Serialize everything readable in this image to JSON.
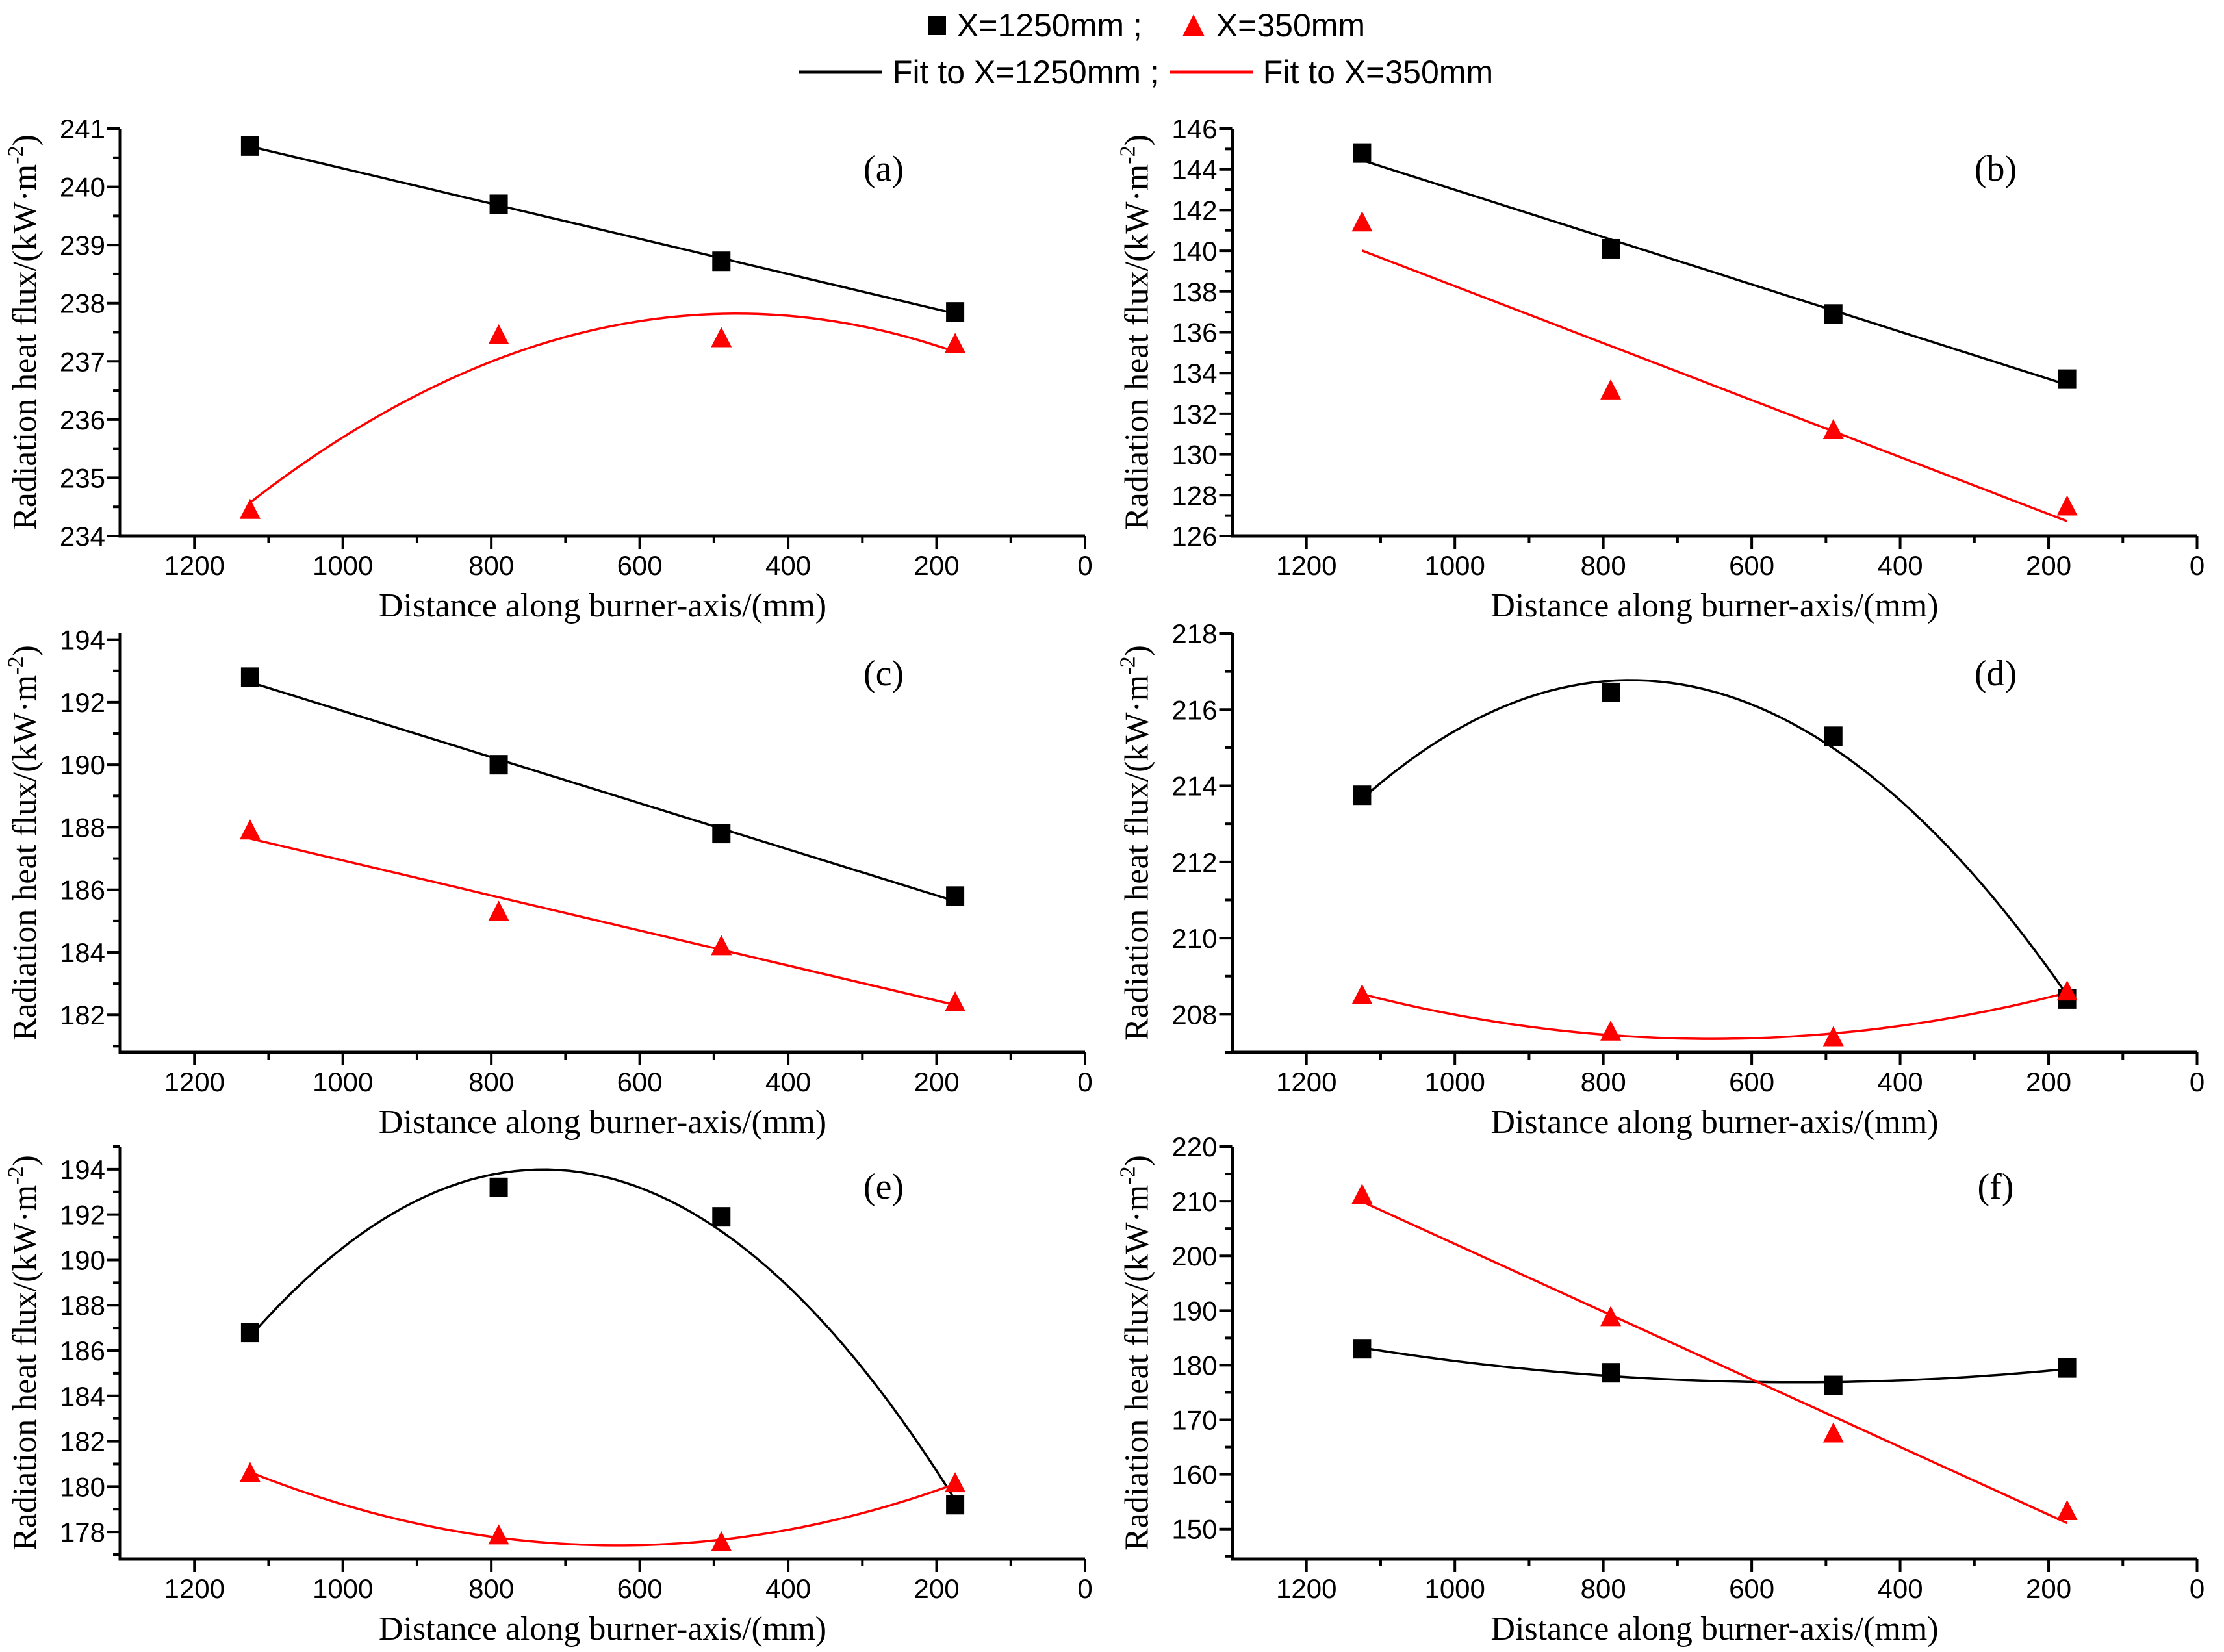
{
  "figure": {
    "background": "#FFFFFF",
    "colors": {
      "series1": "#000000",
      "series2": "#FF0000"
    }
  },
  "legend": {
    "row1": [
      {
        "marker": "square",
        "color": "#000000",
        "label": "X=1250mm ;"
      },
      {
        "marker": "triangle",
        "color": "#FF0000",
        "label": "X=350mm"
      }
    ],
    "row2": [
      {
        "marker": "line",
        "color": "#000000",
        "label": "Fit to X=1250mm ;"
      },
      {
        "marker": "line",
        "color": "#FF0000",
        "label": "Fit to X=350mm"
      }
    ]
  },
  "axis_text": {
    "xlabel": "Distance along burner-axis/(mm)",
    "ylabel": "Radiation heat flux/(kW·m⁻²)",
    "ylabel_parts": {
      "base": "Radiation heat flux/(kW·m",
      "sup": "-2",
      "end": ")"
    }
  },
  "chart_data": [
    {
      "panel": "(a)",
      "type": "scatter",
      "xlabel": "Distance along burner-axis/(mm)",
      "ylabel": "Radiation heat flux/(kW·m⁻²)",
      "xlim": [
        1300,
        0
      ],
      "x_reversed": true,
      "xticks": [
        1200,
        1000,
        800,
        600,
        400,
        200,
        0
      ],
      "xminors": [
        1100,
        900,
        700,
        500,
        300,
        100
      ],
      "ylim": [
        234,
        241
      ],
      "yticks": [
        234,
        235,
        236,
        237,
        238,
        239,
        240,
        241
      ],
      "yminors": [
        234.5,
        235.5,
        236.5,
        237.5,
        238.5,
        239.5,
        240.5
      ],
      "x": [
        1125,
        790,
        490,
        175
      ],
      "series": [
        {
          "name": "X=1250mm",
          "marker": "square",
          "color": "#000000",
          "values": [
            240.7,
            239.7,
            238.72,
            237.85
          ],
          "fit": "linear"
        },
        {
          "name": "X=350mm",
          "marker": "triangle",
          "color": "#FF0000",
          "values": [
            234.45,
            237.45,
            237.4,
            237.3
          ],
          "fit": "quadratic"
        }
      ]
    },
    {
      "panel": "(b)",
      "type": "scatter",
      "xlabel": "Distance along burner-axis/(mm)",
      "ylabel": "Radiation heat flux/(kW·m⁻²)",
      "xlim": [
        1300,
        0
      ],
      "x_reversed": true,
      "xticks": [
        1200,
        1000,
        800,
        600,
        400,
        200,
        0
      ],
      "xminors": [
        1100,
        900,
        700,
        500,
        300,
        100
      ],
      "ylim": [
        126,
        146
      ],
      "yticks": [
        126,
        128,
        130,
        132,
        134,
        136,
        138,
        140,
        142,
        144,
        146
      ],
      "yminors": [
        127,
        129,
        131,
        133,
        135,
        137,
        139,
        141,
        143,
        145
      ],
      "x": [
        1125,
        790,
        490,
        175
      ],
      "series": [
        {
          "name": "X=1250mm",
          "marker": "square",
          "color": "#000000",
          "values": [
            144.8,
            140.1,
            136.9,
            133.7
          ],
          "fit": "linear"
        },
        {
          "name": "X=350mm",
          "marker": "triangle",
          "color": "#FF0000",
          "values": [
            141.4,
            133.15,
            131.2,
            127.45
          ],
          "fit": "linear"
        }
      ]
    },
    {
      "panel": "(c)",
      "type": "scatter",
      "xlabel": "Distance along burner-axis/(mm)",
      "ylabel": "Radiation heat flux/(kW·m⁻²)",
      "xlim": [
        1300,
        0
      ],
      "x_reversed": true,
      "xticks": [
        1200,
        1000,
        800,
        600,
        400,
        200,
        0
      ],
      "xminors": [
        1100,
        900,
        700,
        500,
        300,
        100
      ],
      "ylim": [
        180.8,
        194.2
      ],
      "yticks": [
        182,
        184,
        186,
        188,
        190,
        192,
        194
      ],
      "yminors": [
        181,
        183,
        185,
        187,
        189,
        191,
        193
      ],
      "x": [
        1125,
        790,
        490,
        175
      ],
      "series": [
        {
          "name": "X=1250mm",
          "marker": "square",
          "color": "#000000",
          "values": [
            192.8,
            190.0,
            187.8,
            185.8
          ],
          "fit": "linear"
        },
        {
          "name": "X=350mm",
          "marker": "triangle",
          "color": "#FF0000",
          "values": [
            187.9,
            185.3,
            184.2,
            182.4
          ],
          "fit": "linear"
        }
      ]
    },
    {
      "panel": "(d)",
      "type": "scatter",
      "xlabel": "Distance along burner-axis/(mm)",
      "ylabel": "Radiation heat flux/(kW·m⁻²)",
      "xlim": [
        1300,
        0
      ],
      "x_reversed": true,
      "xticks": [
        1200,
        1000,
        800,
        600,
        400,
        200,
        0
      ],
      "xminors": [
        1100,
        900,
        700,
        500,
        300,
        100
      ],
      "ylim": [
        207,
        218
      ],
      "yticks": [
        208,
        210,
        212,
        214,
        216,
        218
      ],
      "yminors": [
        207,
        209,
        211,
        213,
        215,
        217
      ],
      "x": [
        1125,
        790,
        490,
        175
      ],
      "series": [
        {
          "name": "X=1250mm",
          "marker": "square",
          "color": "#000000",
          "values": [
            213.75,
            216.45,
            215.3,
            208.4
          ],
          "fit": "quadratic"
        },
        {
          "name": "X=350mm",
          "marker": "triangle",
          "color": "#FF0000",
          "values": [
            208.5,
            207.55,
            207.4,
            208.6
          ],
          "fit": "quadratic"
        }
      ]
    },
    {
      "panel": "(e)",
      "type": "scatter",
      "xlabel": "Distance along burner-axis/(mm)",
      "ylabel": "Radiation heat flux/(kW·m⁻²)",
      "xlim": [
        1300,
        0
      ],
      "x_reversed": true,
      "xticks": [
        1200,
        1000,
        800,
        600,
        400,
        200,
        0
      ],
      "xminors": [
        1100,
        900,
        700,
        500,
        300,
        100
      ],
      "ylim": [
        176.8,
        195
      ],
      "yticks": [
        178,
        180,
        182,
        184,
        186,
        188,
        190,
        192,
        194
      ],
      "yminors": [
        177,
        179,
        181,
        183,
        185,
        187,
        189,
        191,
        193,
        195
      ],
      "x": [
        1125,
        790,
        490,
        175
      ],
      "series": [
        {
          "name": "X=1250mm",
          "marker": "square",
          "color": "#000000",
          "values": [
            186.8,
            193.2,
            191.9,
            179.2
          ],
          "fit": "quadratic"
        },
        {
          "name": "X=350mm",
          "marker": "triangle",
          "color": "#FF0000",
          "values": [
            180.6,
            177.85,
            177.55,
            180.15
          ],
          "fit": "quadratic"
        }
      ]
    },
    {
      "panel": "(f)",
      "type": "scatter",
      "xlabel": "Distance along burner-axis/(mm)",
      "ylabel": "Radiation heat flux/(kW·m⁻²)",
      "xlim": [
        1300,
        0
      ],
      "x_reversed": true,
      "xticks": [
        1200,
        1000,
        800,
        600,
        400,
        200,
        0
      ],
      "xminors": [
        1100,
        900,
        700,
        500,
        300,
        100
      ],
      "ylim": [
        144.5,
        220
      ],
      "yticks": [
        150,
        160,
        170,
        180,
        190,
        200,
        210,
        220
      ],
      "yminors": [
        145,
        155,
        165,
        175,
        185,
        195,
        205,
        215
      ],
      "x": [
        1125,
        790,
        490,
        175
      ],
      "series": [
        {
          "name": "X=1250mm",
          "marker": "square",
          "color": "#000000",
          "values": [
            183.0,
            178.6,
            176.3,
            179.5
          ],
          "fit": "quadratic"
        },
        {
          "name": "X=350mm",
          "marker": "triangle",
          "color": "#FF0000",
          "values": [
            211.2,
            188.8,
            167.5,
            153.3
          ],
          "fit": "linear"
        }
      ]
    }
  ]
}
